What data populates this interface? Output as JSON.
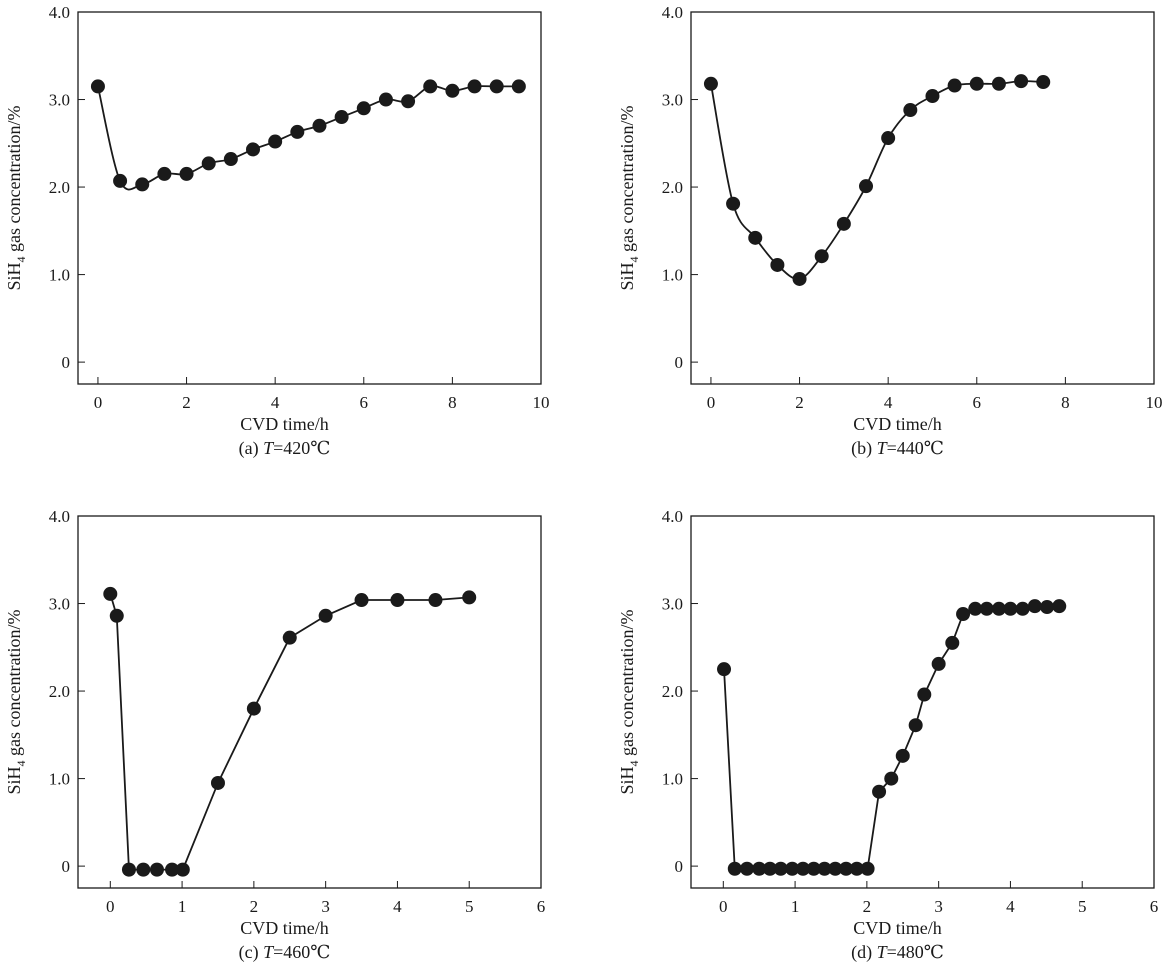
{
  "chart_data": [
    {
      "type": "line",
      "caption_prefix": "(a) ",
      "caption_var": "T",
      "caption_value": "=420℃",
      "xlabel": "CVD time/h",
      "ylabel_main": "SiH",
      "ylabel_sub": "4",
      "ylabel_rest": " gas concentration/%",
      "xlim": [
        -0.45,
        10
      ],
      "ylim": [
        -0.25,
        4.0
      ],
      "xticks": [
        0,
        2,
        4,
        6,
        8,
        10
      ],
      "xtick_labels": [
        "0",
        "2",
        "4",
        "6",
        "8",
        "10"
      ],
      "yticks": [
        0,
        1,
        2,
        3,
        4
      ],
      "ytick_labels": [
        "0",
        "1.0",
        "2.0",
        "3.0",
        "4.0"
      ],
      "smooth": true,
      "marker": "filled-circle",
      "color": "#1a1a1a",
      "x": [
        0,
        0.5,
        1,
        1.5,
        2,
        2.5,
        3,
        3.5,
        4,
        4.5,
        5,
        5.5,
        6,
        6.5,
        7,
        7.5,
        8,
        8.5,
        9,
        9.5
      ],
      "y": [
        3.15,
        2.07,
        2.03,
        2.15,
        2.15,
        2.27,
        2.32,
        2.43,
        2.52,
        2.63,
        2.7,
        2.8,
        2.9,
        3.0,
        2.98,
        3.15,
        3.1,
        3.15,
        3.15,
        3.15
      ]
    },
    {
      "type": "line",
      "caption_prefix": "(b) ",
      "caption_var": "T",
      "caption_value": "=440℃",
      "xlabel": "CVD time/h",
      "ylabel_main": "SiH",
      "ylabel_sub": "4",
      "ylabel_rest": " gas concentration/%",
      "xlim": [
        -0.45,
        10
      ],
      "ylim": [
        -0.25,
        4.0
      ],
      "xticks": [
        0,
        2,
        4,
        6,
        8,
        10
      ],
      "xtick_labels": [
        "0",
        "2",
        "4",
        "6",
        "8",
        "10"
      ],
      "yticks": [
        0,
        1,
        2,
        3,
        4
      ],
      "ytick_labels": [
        "0",
        "1.0",
        "2.0",
        "3.0",
        "4.0"
      ],
      "smooth": true,
      "marker": "filled-circle",
      "color": "#1a1a1a",
      "x": [
        0,
        0.5,
        1,
        1.5,
        2,
        2.5,
        3,
        3.5,
        4,
        4.5,
        5,
        5.5,
        6,
        6.5,
        7,
        7.5
      ],
      "y": [
        3.18,
        1.81,
        1.42,
        1.11,
        0.95,
        1.21,
        1.58,
        2.01,
        2.56,
        2.88,
        3.04,
        3.16,
        3.18,
        3.18,
        3.21,
        3.2
      ]
    },
    {
      "type": "line",
      "caption_prefix": "(c) ",
      "caption_var": "T",
      "caption_value": "=460℃",
      "xlabel": "CVD time/h",
      "ylabel_main": "SiH",
      "ylabel_sub": "4",
      "ylabel_rest": " gas concentration/%",
      "xlim": [
        -0.45,
        6
      ],
      "ylim": [
        -0.25,
        4.0
      ],
      "xticks": [
        0,
        1,
        2,
        3,
        4,
        5,
        6
      ],
      "xtick_labels": [
        "0",
        "1",
        "2",
        "3",
        "4",
        "5",
        "6"
      ],
      "yticks": [
        0,
        1,
        2,
        3,
        4
      ],
      "ytick_labels": [
        "0",
        "1.0",
        "2.0",
        "3.0",
        "4.0"
      ],
      "smooth": false,
      "marker": "filled-circle",
      "color": "#1a1a1a",
      "x": [
        0,
        0.09,
        0.26,
        0.46,
        0.65,
        0.86,
        1.01,
        1.5,
        2.0,
        2.5,
        3.0,
        3.5,
        4.0,
        4.53,
        5.0
      ],
      "y": [
        3.11,
        2.86,
        -0.04,
        -0.04,
        -0.04,
        -0.04,
        -0.04,
        0.95,
        1.8,
        2.61,
        2.86,
        3.04,
        3.04,
        3.04,
        3.07
      ]
    },
    {
      "type": "line",
      "caption_prefix": "(d) ",
      "caption_var": "T",
      "caption_value": "=480℃",
      "xlabel": "CVD time/h",
      "ylabel_main": "SiH",
      "ylabel_sub": "4",
      "ylabel_rest": " gas concentration/%",
      "xlim": [
        -0.45,
        6
      ],
      "ylim": [
        -0.25,
        4.0
      ],
      "xticks": [
        0,
        1,
        2,
        3,
        4,
        5,
        6
      ],
      "xtick_labels": [
        "0",
        "1",
        "2",
        "3",
        "4",
        "5",
        "6"
      ],
      "yticks": [
        0,
        1,
        2,
        3,
        4
      ],
      "ytick_labels": [
        "0",
        "1.0",
        "2.0",
        "3.0",
        "4.0"
      ],
      "smooth": false,
      "marker": "filled-circle",
      "color": "#1a1a1a",
      "x": [
        0.01,
        0.16,
        0.33,
        0.5,
        0.65,
        0.8,
        0.96,
        1.11,
        1.26,
        1.41,
        1.56,
        1.71,
        1.86,
        2.01,
        2.17,
        2.34,
        2.5,
        2.68,
        2.8,
        3.0,
        3.19,
        3.34,
        3.51,
        3.67,
        3.84,
        4.0,
        4.17,
        4.34,
        4.51,
        4.68
      ],
      "y": [
        2.25,
        -0.03,
        -0.03,
        -0.03,
        -0.03,
        -0.03,
        -0.03,
        -0.03,
        -0.03,
        -0.03,
        -0.03,
        -0.03,
        -0.03,
        -0.03,
        0.85,
        1.0,
        1.26,
        1.61,
        1.96,
        2.31,
        2.55,
        2.88,
        2.94,
        2.94,
        2.94,
        2.94,
        2.94,
        2.97,
        2.96,
        2.97
      ]
    }
  ]
}
